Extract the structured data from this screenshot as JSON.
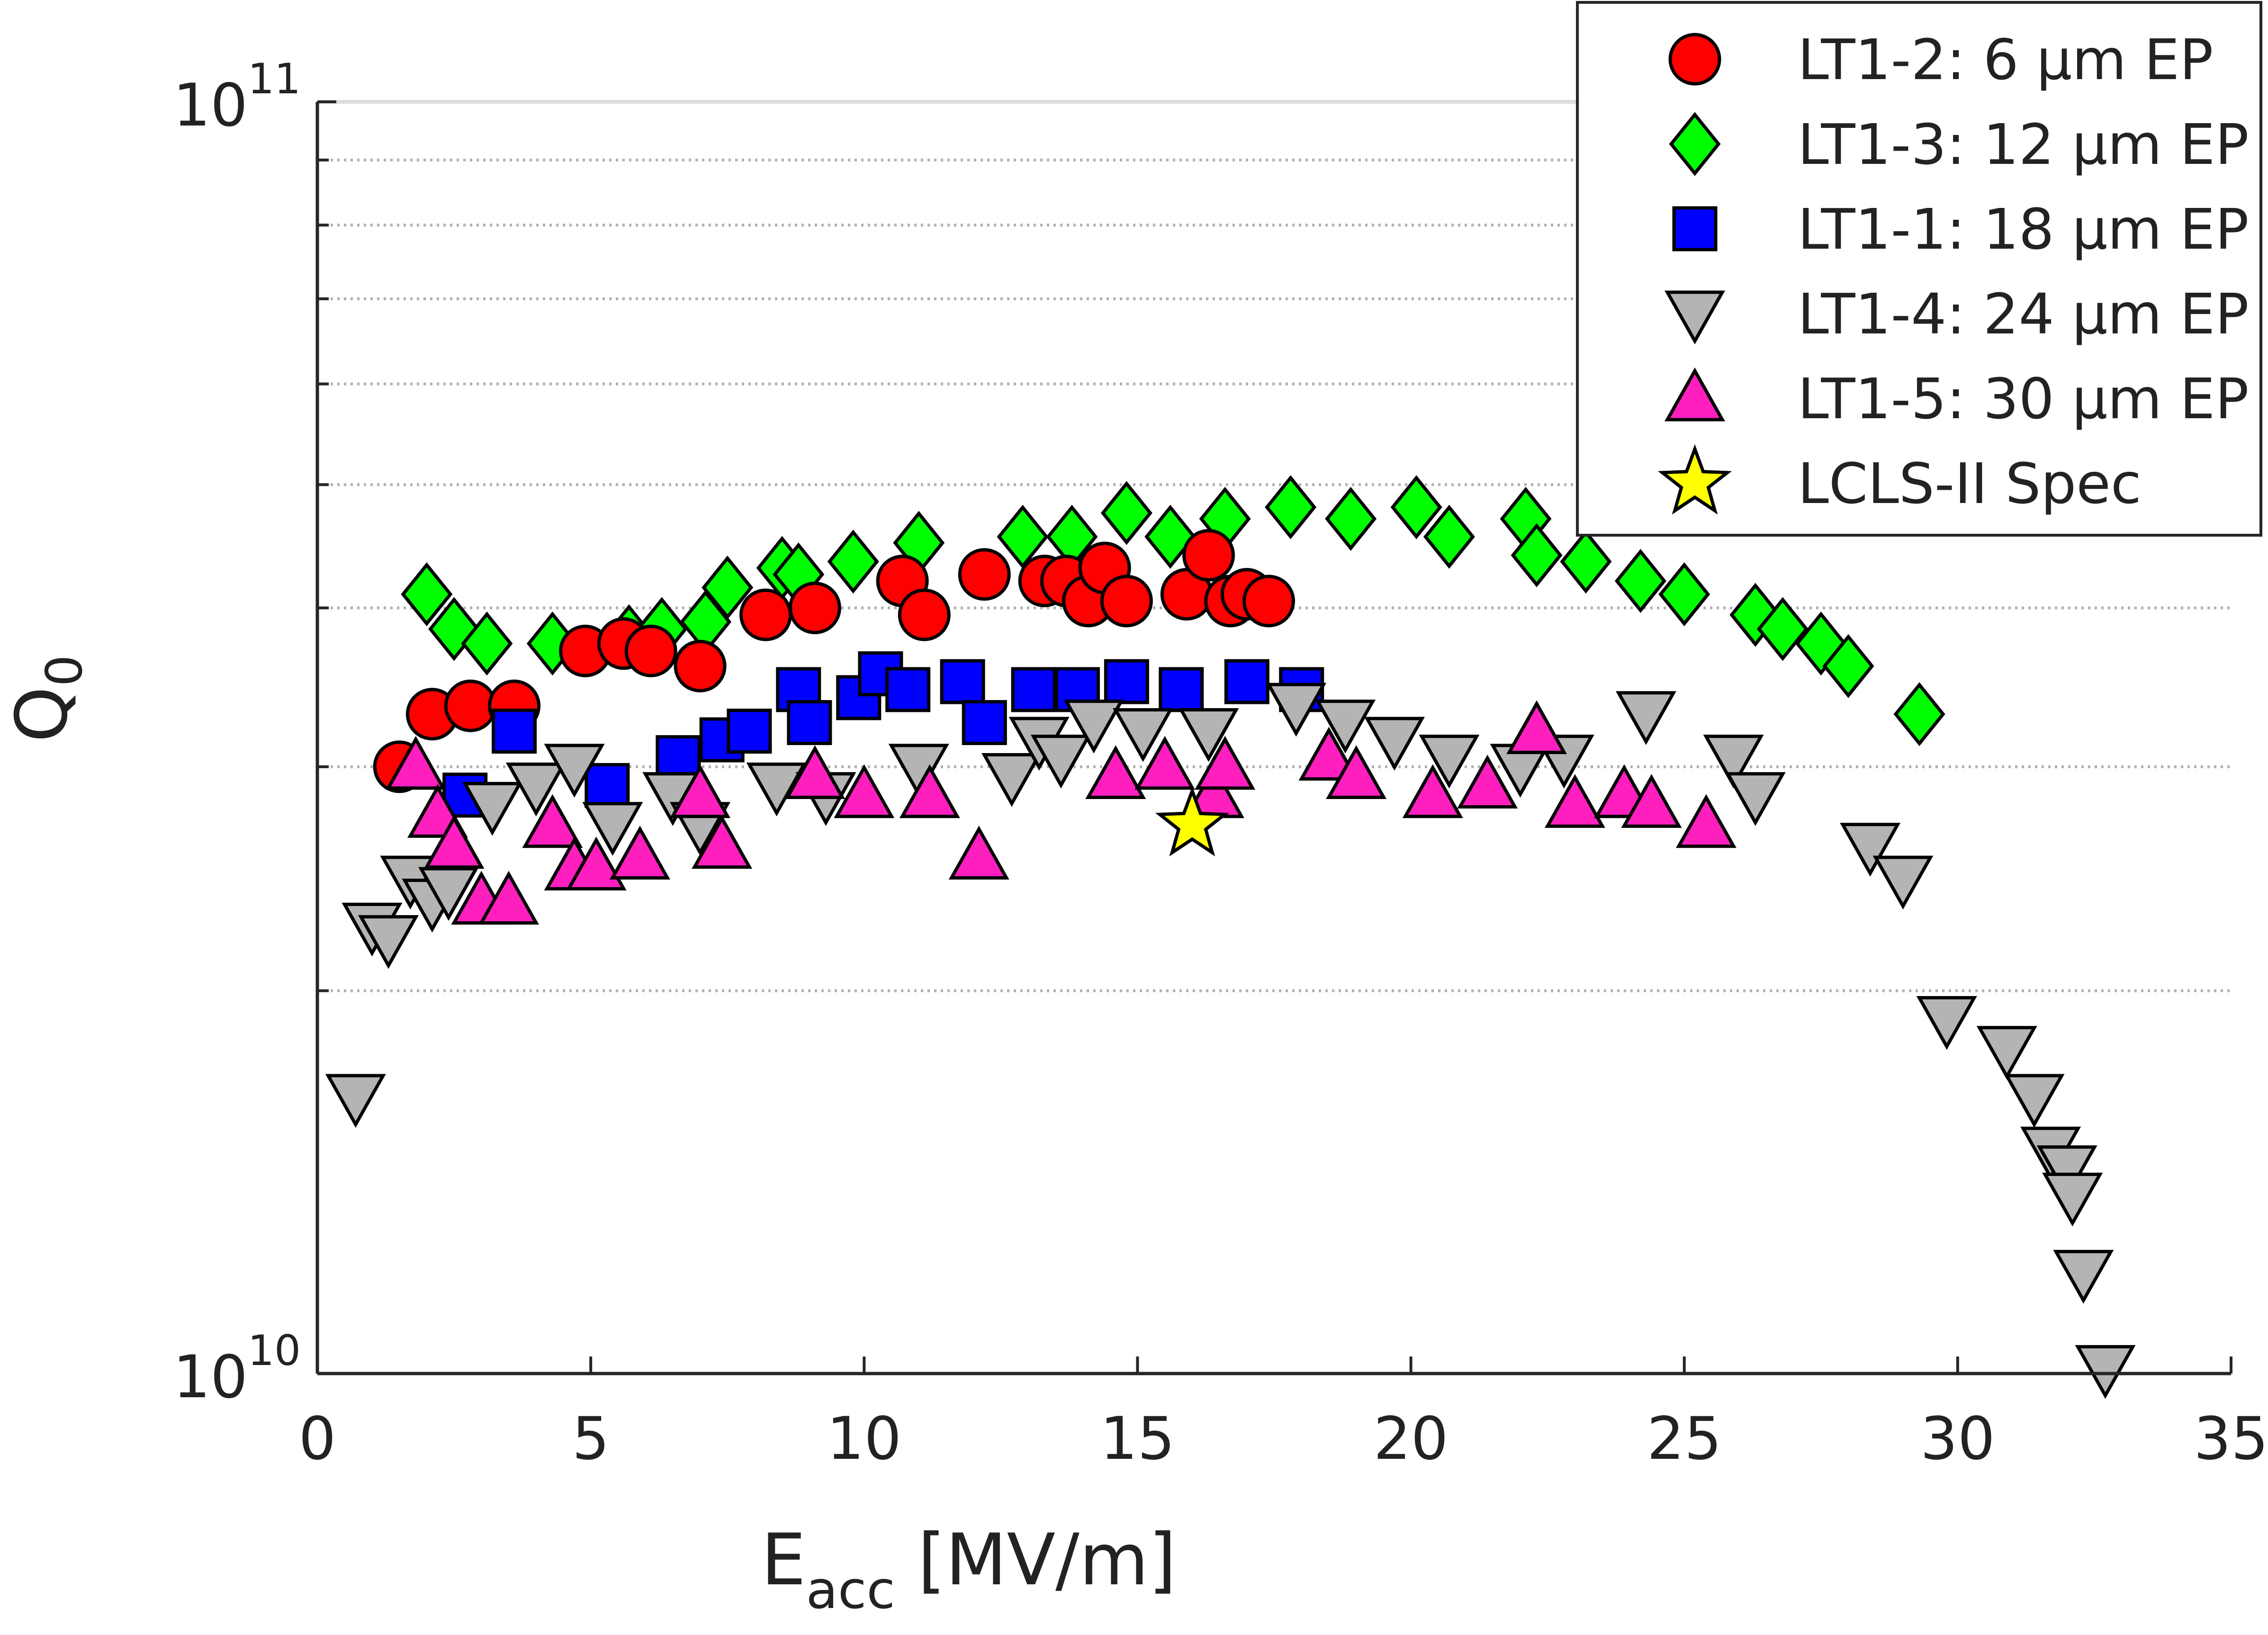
{
  "chart_data": {
    "type": "scatter",
    "title": "",
    "xlabel": {
      "main": "E",
      "sub": "acc",
      "rest": " [MV/m]"
    },
    "ylabel": {
      "main": "Q",
      "sub": "0"
    },
    "xlim": [
      0,
      35
    ],
    "ylim": [
      10000000000.0,
      100000000000.0
    ],
    "yscale": "log",
    "x_ticks": [
      0,
      5,
      10,
      15,
      20,
      25,
      30,
      35
    ],
    "y_ticks": [
      {
        "value": 10000000000.0,
        "base": "10",
        "exp": "10"
      },
      {
        "value": 100000000000.0,
        "base": "10",
        "exp": "11"
      }
    ],
    "y_minor_gridlines": [
      20000000000.0,
      30000000000.0,
      40000000000.0,
      50000000000.0,
      60000000000.0,
      70000000000.0,
      80000000000.0,
      90000000000.0
    ],
    "grid": "horizontal dotted",
    "legend_position": "top-right",
    "series": [
      {
        "name": "LT1-2: 6 μm EP",
        "marker": "circle",
        "color": "#ff0000",
        "points": [
          [
            1.5,
            30000000000.0
          ],
          [
            2.1,
            33000000000.0
          ],
          [
            2.8,
            33500000000.0
          ],
          [
            3.6,
            33500000000.0
          ],
          [
            4.9,
            37000000000.0
          ],
          [
            5.6,
            37500000000.0
          ],
          [
            6.1,
            37000000000.0
          ],
          [
            7.0,
            36000000000.0
          ],
          [
            8.2,
            39500000000.0
          ],
          [
            9.1,
            40000000000.0
          ],
          [
            10.7,
            42000000000.0
          ],
          [
            11.1,
            39500000000.0
          ],
          [
            12.2,
            42500000000.0
          ],
          [
            13.3,
            42000000000.0
          ],
          [
            13.7,
            42000000000.0
          ],
          [
            14.1,
            40500000000.0
          ],
          [
            14.4,
            43000000000.0
          ],
          [
            14.8,
            40500000000.0
          ],
          [
            15.9,
            41000000000.0
          ],
          [
            16.3,
            44000000000.0
          ],
          [
            16.7,
            40500000000.0
          ],
          [
            17.0,
            41000000000.0
          ],
          [
            17.4,
            40500000000.0
          ]
        ]
      },
      {
        "name": "LT1-3: 12 μm EP",
        "marker": "diamond",
        "color": "#00ff00",
        "points": [
          [
            2.0,
            41000000000.0
          ],
          [
            2.5,
            38500000000.0
          ],
          [
            3.1,
            37500000000.0
          ],
          [
            4.3,
            37500000000.0
          ],
          [
            5.7,
            38000000000.0
          ],
          [
            6.3,
            38500000000.0
          ],
          [
            7.1,
            39000000000.0
          ],
          [
            7.5,
            41500000000.0
          ],
          [
            8.5,
            43000000000.0
          ],
          [
            8.8,
            42500000000.0
          ],
          [
            9.8,
            43500000000.0
          ],
          [
            11.0,
            45000000000.0
          ],
          [
            12.9,
            45500000000.0
          ],
          [
            13.8,
            45500000000.0
          ],
          [
            14.8,
            47500000000.0
          ],
          [
            15.6,
            45500000000.0
          ],
          [
            16.6,
            47000000000.0
          ],
          [
            17.8,
            48000000000.0
          ],
          [
            18.9,
            47000000000.0
          ],
          [
            20.1,
            48000000000.0
          ],
          [
            20.7,
            45500000000.0
          ],
          [
            22.1,
            47000000000.0
          ],
          [
            22.3,
            44000000000.0
          ],
          [
            23.2,
            43500000000.0
          ],
          [
            24.2,
            42000000000.0
          ],
          [
            25.0,
            41000000000.0
          ],
          [
            26.3,
            39500000000.0
          ],
          [
            26.8,
            38500000000.0
          ],
          [
            27.5,
            37500000000.0
          ],
          [
            28.0,
            36000000000.0
          ],
          [
            29.3,
            33000000000.0
          ]
        ]
      },
      {
        "name": "LT1-1: 18 μm EP",
        "marker": "square",
        "color": "#0000ff",
        "points": [
          [
            2.7,
            28500000000.0
          ],
          [
            3.6,
            32000000000.0
          ],
          [
            5.3,
            29000000000.0
          ],
          [
            6.6,
            30500000000.0
          ],
          [
            7.4,
            31500000000.0
          ],
          [
            7.9,
            32000000000.0
          ],
          [
            8.8,
            34500000000.0
          ],
          [
            9.0,
            32500000000.0
          ],
          [
            9.9,
            34000000000.0
          ],
          [
            10.3,
            35500000000.0
          ],
          [
            10.8,
            34500000000.0
          ],
          [
            11.8,
            35000000000.0
          ],
          [
            12.2,
            32500000000.0
          ],
          [
            13.1,
            34500000000.0
          ],
          [
            13.9,
            34500000000.0
          ],
          [
            14.8,
            35000000000.0
          ],
          [
            15.8,
            34500000000.0
          ],
          [
            17.0,
            35000000000.0
          ],
          [
            18.0,
            34500000000.0
          ]
        ]
      },
      {
        "name": "LT1-4: 24 μm EP",
        "marker": "triangle-down",
        "color": "#b4b4b4",
        "points": [
          [
            0.7,
            16500000000.0
          ],
          [
            1.0,
            22500000000.0
          ],
          [
            1.3,
            22000000000.0
          ],
          [
            1.7,
            24500000000.0
          ],
          [
            2.1,
            23500000000.0
          ],
          [
            2.4,
            24000000000.0
          ],
          [
            3.2,
            28000000000.0
          ],
          [
            4.0,
            29000000000.0
          ],
          [
            4.7,
            30000000000.0
          ],
          [
            5.4,
            27000000000.0
          ],
          [
            6.5,
            28500000000.0
          ],
          [
            7.0,
            27000000000.0
          ],
          [
            8.4,
            29000000000.0
          ],
          [
            9.3,
            28500000000.0
          ],
          [
            11.0,
            30000000000.0
          ],
          [
            12.7,
            29500000000.0
          ],
          [
            13.2,
            31500000000.0
          ],
          [
            13.6,
            30500000000.0
          ],
          [
            14.2,
            32500000000.0
          ],
          [
            15.1,
            32000000000.0
          ],
          [
            16.3,
            32000000000.0
          ],
          [
            17.9,
            33500000000.0
          ],
          [
            18.8,
            32500000000.0
          ],
          [
            19.7,
            31500000000.0
          ],
          [
            20.7,
            30500000000.0
          ],
          [
            22.0,
            30000000000.0
          ],
          [
            22.8,
            30500000000.0
          ],
          [
            24.3,
            33000000000.0
          ],
          [
            25.9,
            30500000000.0
          ],
          [
            26.3,
            28500000000.0
          ],
          [
            28.4,
            26000000000.0
          ],
          [
            29.0,
            24500000000.0
          ],
          [
            29.8,
            19000000000.0
          ],
          [
            30.9,
            18000000000.0
          ],
          [
            31.4,
            16500000000.0
          ],
          [
            31.7,
            15000000000.0
          ],
          [
            32.0,
            14500000000.0
          ],
          [
            32.1,
            13800000000.0
          ],
          [
            32.3,
            12000000000.0
          ],
          [
            32.7,
            10100000000.0
          ]
        ]
      },
      {
        "name": "LT1-5: 30 μm EP",
        "marker": "triangle-up",
        "color": "#ff1fbf",
        "points": [
          [
            1.8,
            30000000000.0
          ],
          [
            2.2,
            27500000000.0
          ],
          [
            2.5,
            26000000000.0
          ],
          [
            3.0,
            23500000000.0
          ],
          [
            3.5,
            23500000000.0
          ],
          [
            4.3,
            27000000000.0
          ],
          [
            4.7,
            25000000000.0
          ],
          [
            5.1,
            25000000000.0
          ],
          [
            5.9,
            25500000000.0
          ],
          [
            7.0,
            28500000000.0
          ],
          [
            7.4,
            26000000000.0
          ],
          [
            9.1,
            29500000000.0
          ],
          [
            10.0,
            28500000000.0
          ],
          [
            11.2,
            28500000000.0
          ],
          [
            12.1,
            25500000000.0
          ],
          [
            14.6,
            29500000000.0
          ],
          [
            15.5,
            30000000000.0
          ],
          [
            16.4,
            28500000000.0
          ],
          [
            16.6,
            30000000000.0
          ],
          [
            18.5,
            30500000000.0
          ],
          [
            19.0,
            29500000000.0
          ],
          [
            20.4,
            28500000000.0
          ],
          [
            21.4,
            29000000000.0
          ],
          [
            22.3,
            32000000000.0
          ],
          [
            23.0,
            28000000000.0
          ],
          [
            23.9,
            28500000000.0
          ],
          [
            24.4,
            28000000000.0
          ],
          [
            25.4,
            27000000000.0
          ]
        ]
      },
      {
        "name": "LCLS-II Spec",
        "marker": "star",
        "color": "#ffff00",
        "points": [
          [
            16.0,
            27000000000.0
          ]
        ]
      }
    ]
  }
}
